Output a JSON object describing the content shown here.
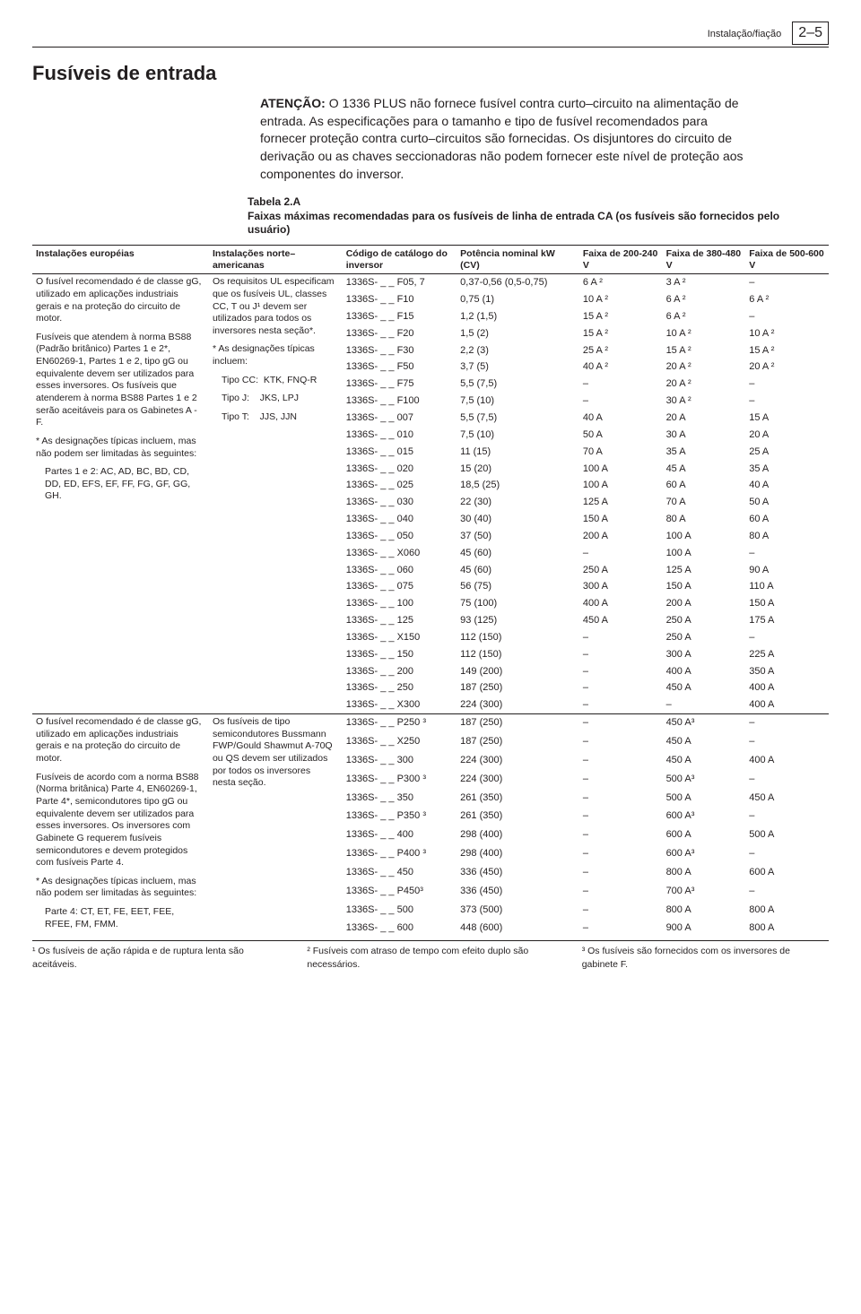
{
  "header": {
    "section": "Instalação/fiação",
    "page": "2–5"
  },
  "title": "Fusíveis de entrada",
  "warning": {
    "attention_label": "ATENÇÃO:",
    "text": "O 1336 PLUS não fornece fusível contra curto–circuito na alimentação de entrada. As especificações para o tamanho e tipo de fusível recomendados para fornecer proteção contra curto–circuitos são fornecidas. Os disjuntores do circuito de derivação ou as chaves seccionadoras não podem fornecer este nível de proteção aos componentes do inversor."
  },
  "caption": {
    "label": "Tabela 2.A",
    "text": "Faixas máximas recomendadas para os fusíveis de linha de entrada CA (os fusíveis são fornecidos pelo usuário)"
  },
  "columns": {
    "eu": "Instalações européias",
    "na": "Instalações norte–americanas",
    "code": "Código de catálogo do inversor",
    "power": "Potência nominal kW (CV)",
    "v200": "Faixa de 200-240 V",
    "v380": "Faixa de 380-480 V",
    "v500": "Faixa de 500-600 V"
  },
  "eu_note1": {
    "p1": "O fusível recomendado é de classe gG, utilizado em aplicações industriais gerais e na proteção do circuito de motor.",
    "p2": "Fusíveis que atendem à norma BS88 (Padrão britânico) Partes 1 e 2*, EN60269-1, Partes 1 e 2, tipo gG ou equivalente devem ser utilizados para esses inversores. Os fusíveis que atenderem à norma BS88 Partes 1 e 2 serão aceitáveis para os Gabinetes A - F.",
    "p3": "* As designações típicas incluem, mas não podem ser limitadas às seguintes:",
    "p4": "Partes 1 e 2: AC, AD, BC, BD, CD, DD, ED, EFS, EF, FF, FG, GF, GG, GH."
  },
  "na_note1": {
    "p1": "Os requisitos UL especificam que os fusíveis UL, classes CC, T ou J¹ devem ser utilizados para todos os inversores nesta seção*.",
    "p2": "* As designações típicas incluem:",
    "l1": "Tipo CC:  KTK, FNQ-R",
    "l2": "Tipo J:    JKS, LPJ",
    "l3": "Tipo T:    JJS, JJN"
  },
  "eu_note2": {
    "p1": "O fusível recomendado é de classe gG, utilizado em aplicações industriais gerais e na proteção do circuito de motor.",
    "p2": "Fusíveis de acordo com a norma BS88 (Norma britânica) Parte 4, EN60269-1, Parte 4*, semicondutores tipo gG ou equivalente devem ser utilizados para esses inversores. Os inversores com Gabinete G requerem fusíveis semicondutores e devem protegidos com fusíveis Parte 4.",
    "p3": "* As designações típicas incluem, mas não podem ser limitadas às seguintes:",
    "p4": "Parte 4: CT, ET, FE, EET, FEE, RFEE, FM, FMM."
  },
  "na_note2": {
    "p1": "Os fusíveis de tipo semicondutores Bussmann FWP/Gould Shawmut A-70Q ou QS devem ser utilizados por todos os inversores nesta seção."
  },
  "rows1": [
    {
      "code": "1336S- _ _ F05, 7",
      "pw": "0,37-0,56 (0,5-0,75)",
      "a": "6 A ²",
      "b": "3 A ²",
      "c": "–"
    },
    {
      "code": "1336S- _ _ F10",
      "pw": "0,75 (1)",
      "a": "10 A ²",
      "b": "6 A ²",
      "c": "6 A ²"
    },
    {
      "code": "1336S- _ _ F15",
      "pw": "1,2 (1,5)",
      "a": "15 A ²",
      "b": "6 A ²",
      "c": "–"
    },
    {
      "code": "1336S- _ _ F20",
      "pw": "1,5 (2)",
      "a": "15 A ²",
      "b": "10 A ²",
      "c": "10 A ²"
    },
    {
      "code": "1336S- _ _ F30",
      "pw": "2,2 (3)",
      "a": "25 A ²",
      "b": "15 A ²",
      "c": "15 A ²"
    },
    {
      "code": "1336S- _ _ F50",
      "pw": "3,7 (5)",
      "a": "40 A ²",
      "b": "20 A ²",
      "c": "20 A ²"
    },
    {
      "code": "1336S- _ _ F75",
      "pw": "5,5 (7,5)",
      "a": "–",
      "b": "20 A ²",
      "c": "–"
    },
    {
      "code": "1336S- _ _ F100",
      "pw": "7,5 (10)",
      "a": "–",
      "b": "30 A ²",
      "c": "–"
    },
    {
      "code": "1336S- _ _ 007",
      "pw": "5,5 (7,5)",
      "a": "40 A",
      "b": "20 A",
      "c": "15 A"
    },
    {
      "code": "1336S- _ _ 010",
      "pw": "7,5 (10)",
      "a": "50 A",
      "b": "30 A",
      "c": "20 A"
    },
    {
      "code": "1336S- _ _ 015",
      "pw": "11 (15)",
      "a": "70 A",
      "b": "35 A",
      "c": "25 A"
    },
    {
      "code": "1336S- _ _ 020",
      "pw": "15 (20)",
      "a": "100 A",
      "b": "45 A",
      "c": "35 A"
    },
    {
      "code": "1336S- _ _ 025",
      "pw": "18,5 (25)",
      "a": "100 A",
      "b": "60 A",
      "c": "40 A"
    },
    {
      "code": "1336S- _ _ 030",
      "pw": "22 (30)",
      "a": "125 A",
      "b": "70 A",
      "c": "50 A"
    },
    {
      "code": "1336S- _ _ 040",
      "pw": "30 (40)",
      "a": "150 A",
      "b": "80 A",
      "c": "60 A"
    },
    {
      "code": "1336S- _ _ 050",
      "pw": "37 (50)",
      "a": "200 A",
      "b": "100 A",
      "c": "80 A"
    },
    {
      "code": "1336S- _ _ X060",
      "pw": "45 (60)",
      "a": "–",
      "b": "100 A",
      "c": "–"
    },
    {
      "code": "1336S- _ _ 060",
      "pw": "45 (60)",
      "a": "250 A",
      "b": "125 A",
      "c": "90 A"
    },
    {
      "code": "1336S- _ _ 075",
      "pw": "56 (75)",
      "a": "300 A",
      "b": "150 A",
      "c": "110 A"
    },
    {
      "code": "1336S- _ _ 100",
      "pw": "75 (100)",
      "a": "400 A",
      "b": "200 A",
      "c": "150 A"
    },
    {
      "code": "1336S- _ _ 125",
      "pw": "93 (125)",
      "a": "450 A",
      "b": "250 A",
      "c": "175 A"
    },
    {
      "code": "1336S- _ _ X150",
      "pw": "112 (150)",
      "a": "–",
      "b": "250 A",
      "c": "–"
    },
    {
      "code": "1336S- _ _ 150",
      "pw": "112 (150)",
      "a": "–",
      "b": "300 A",
      "c": "225 A"
    },
    {
      "code": "1336S- _ _ 200",
      "pw": "149 (200)",
      "a": "–",
      "b": "400 A",
      "c": "350 A"
    },
    {
      "code": "1336S- _ _ 250",
      "pw": "187 (250)",
      "a": "–",
      "b": "450 A",
      "c": "400 A"
    },
    {
      "code": "1336S- _ _ X300",
      "pw": "224 (300)",
      "a": "–",
      "b": "–",
      "c": "400 A"
    }
  ],
  "rows2": [
    {
      "code": "1336S- _ _ P250 ³",
      "pw": "187 (250)",
      "a": "–",
      "b": "450 A³",
      "c": "–"
    },
    {
      "code": "1336S- _ _ X250",
      "pw": "187 (250)",
      "a": "–",
      "b": "450 A",
      "c": "–"
    },
    {
      "code": "1336S- _ _ 300",
      "pw": "224 (300)",
      "a": "–",
      "b": "450 A",
      "c": "400 A"
    },
    {
      "code": "1336S- _ _ P300 ³",
      "pw": "224 (300)",
      "a": "–",
      "b": "500 A³",
      "c": "–"
    },
    {
      "code": "1336S- _ _ 350",
      "pw": "261 (350)",
      "a": "–",
      "b": "500 A",
      "c": "450 A"
    },
    {
      "code": "1336S- _ _ P350 ³",
      "pw": "261 (350)",
      "a": "–",
      "b": "600 A³",
      "c": "–"
    },
    {
      "code": "1336S- _ _ 400",
      "pw": "298 (400)",
      "a": "–",
      "b": "600 A",
      "c": "500 A"
    },
    {
      "code": "1336S- _ _ P400 ³",
      "pw": "298 (400)",
      "a": "–",
      "b": "600 A³",
      "c": "–"
    },
    {
      "code": "1336S- _ _ 450",
      "pw": "336 (450)",
      "a": "–",
      "b": "800 A",
      "c": "600 A"
    },
    {
      "code": "1336S- _ _ P450³",
      "pw": "336 (450)",
      "a": "–",
      "b": "700 A³",
      "c": "–"
    },
    {
      "code": "1336S- _ _ 500",
      "pw": "373 (500)",
      "a": "–",
      "b": "800 A",
      "c": "800 A"
    },
    {
      "code": "1336S- _ _ 600",
      "pw": "448 (600)",
      "a": "–",
      "b": "900 A",
      "c": "800 A"
    }
  ],
  "footnotes": {
    "f1": "¹ Os fusíveis de ação rápida e de ruptura lenta são aceitáveis.",
    "f2": "² Fusíveis com atraso de tempo com efeito duplo são necessários.",
    "f3": "³ Os fusíveis são fornecidos com os inversores de gabinete F."
  }
}
